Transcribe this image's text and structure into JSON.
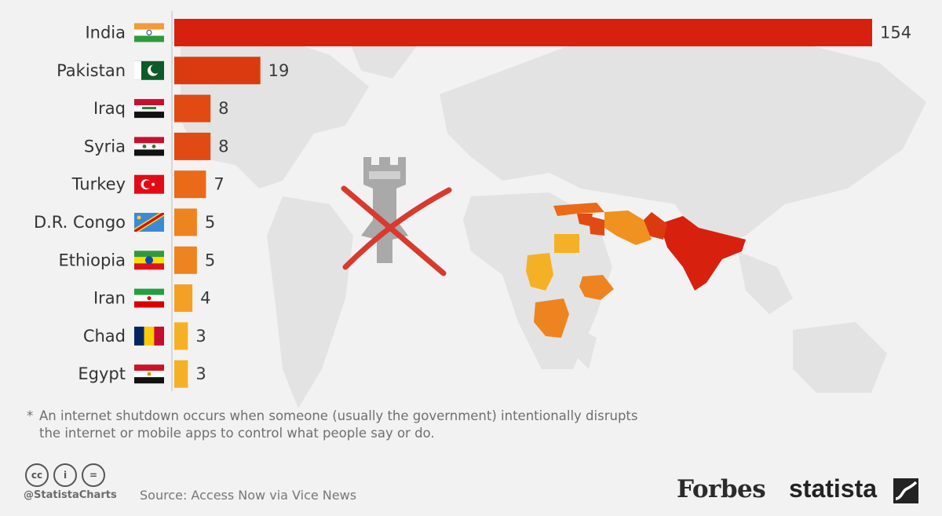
{
  "chart_data": {
    "type": "bar",
    "orientation": "horizontal",
    "categories": [
      "India",
      "Pakistan",
      "Iraq",
      "Syria",
      "Turkey",
      "D.R. Congo",
      "Ethiopia",
      "Iran",
      "Chad",
      "Egypt"
    ],
    "values": [
      154,
      19,
      8,
      8,
      7,
      5,
      5,
      4,
      3,
      3
    ],
    "bar_colors": [
      "#d8200e",
      "#db3a10",
      "#e24a14",
      "#e24a14",
      "#ea6a18",
      "#ee8420",
      "#ee8420",
      "#f3a024",
      "#f5b126",
      "#f5b126"
    ],
    "flag_icons": [
      "india-flag-icon",
      "pakistan-flag-icon",
      "iraq-flag-icon",
      "syria-flag-icon",
      "turkey-flag-icon",
      "dr-congo-flag-icon",
      "ethiopia-flag-icon",
      "iran-flag-icon",
      "chad-flag-icon",
      "egypt-flag-icon"
    ],
    "xlim": [
      0,
      154
    ],
    "grid": false,
    "legend": "none"
  },
  "footnote": {
    "star": "*",
    "line1": "An internet shutdown occurs when someone (usually the government) intentionally disrupts",
    "line2": "the internet or mobile apps to control what people say or do."
  },
  "footer": {
    "license_icons": [
      "cc-icon",
      "attribution-icon",
      "no-derivatives-icon"
    ],
    "license_labels": [
      "cc",
      "i",
      "="
    ],
    "handle": "@StatistaCharts",
    "source": "Source: Access Now via Vice News",
    "forbes": "Forbes",
    "statista": "statista"
  },
  "colors": {
    "background": "#f2f2f2",
    "map_land": "#e4e4e4",
    "crossed_tower": "#a9a9a9",
    "cross": "#d83a2e"
  }
}
